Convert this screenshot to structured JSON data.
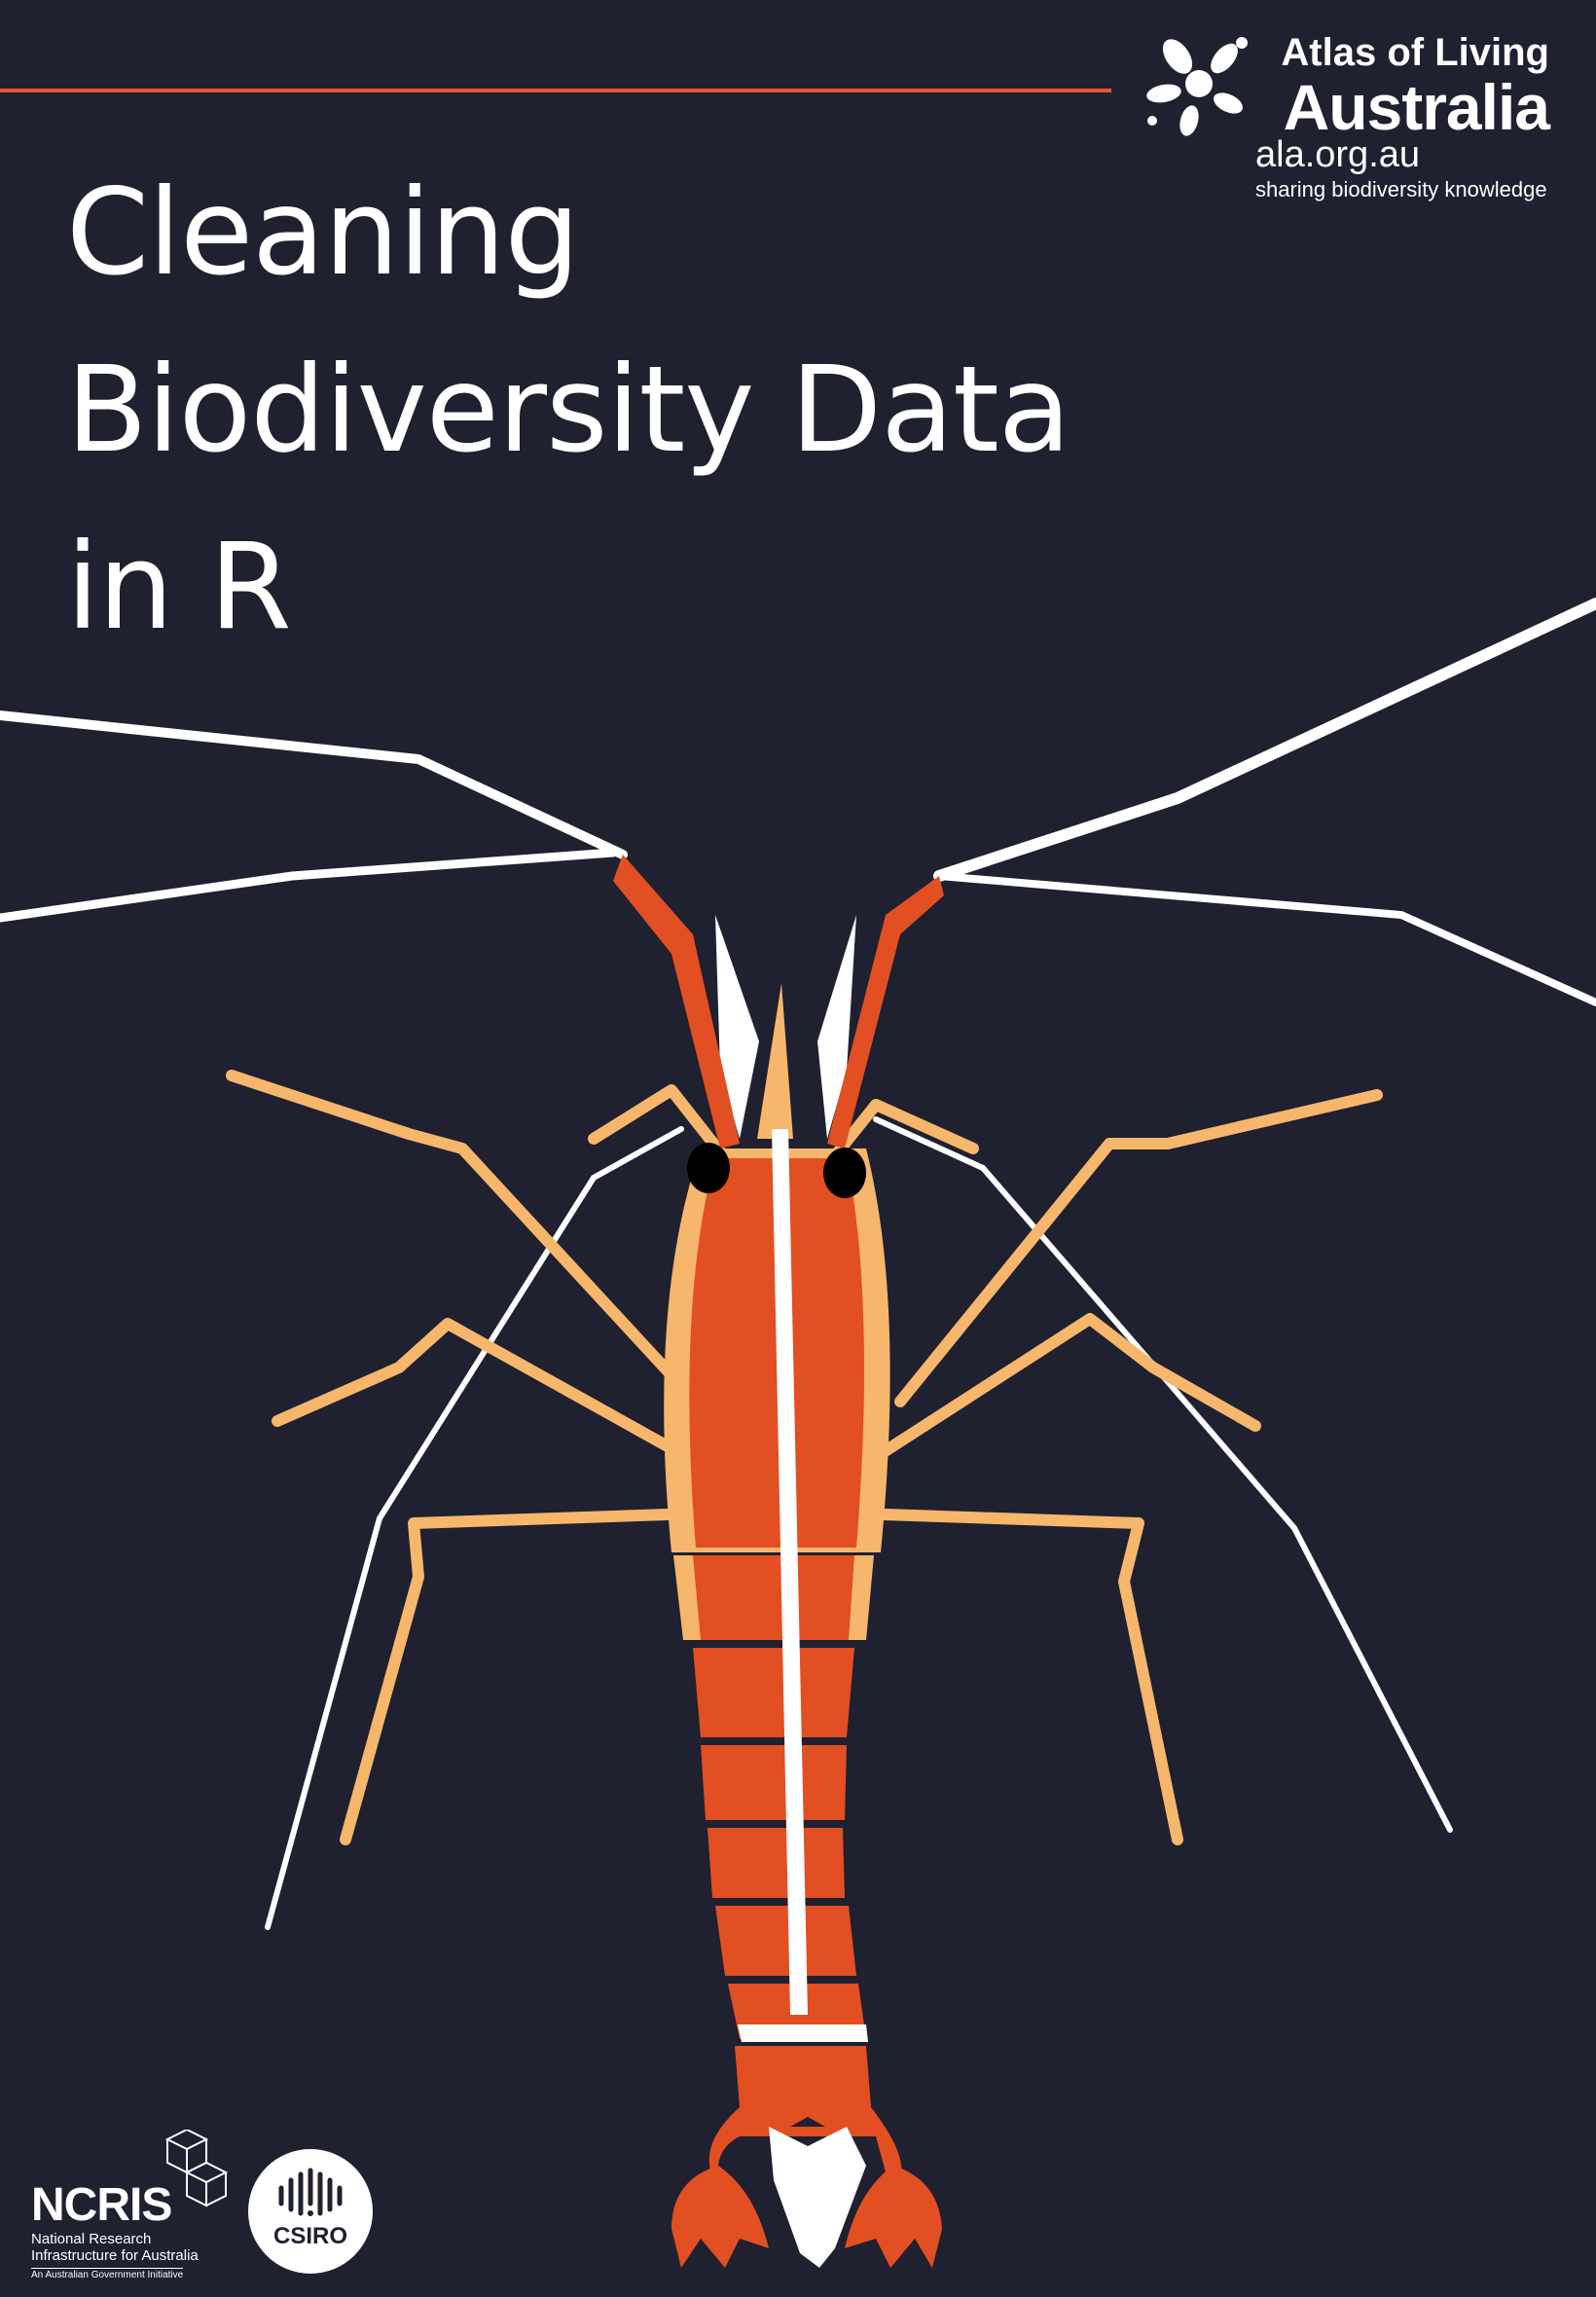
{
  "title": {
    "lines": [
      "Cleaning",
      "Biodiversity Data",
      "in R"
    ]
  },
  "colors": {
    "background": "#1f2030",
    "accent": "#e15a2e",
    "shrimp_body": "#e14f22",
    "shrimp_legs": "#f6b66b",
    "antennae": "#ffffff"
  },
  "ala_logo": {
    "line1": "Atlas of Living",
    "line2": "Australia",
    "url": "ala.org.au",
    "tagline": "sharing biodiversity knowledge",
    "icon": "ala-swirl-icon"
  },
  "footer": {
    "ncris": {
      "name": "NCRIS",
      "subtitle_line1": "National Research",
      "subtitle_line2": "Infrastructure for Australia",
      "initiative": "An Australian Government Initiative",
      "icon": "ncris-cubes-icon"
    },
    "csiro": {
      "name": "CSIRO",
      "icon": "csiro-wave-icon"
    }
  },
  "illustration": {
    "subject": "shrimp-illustration"
  }
}
